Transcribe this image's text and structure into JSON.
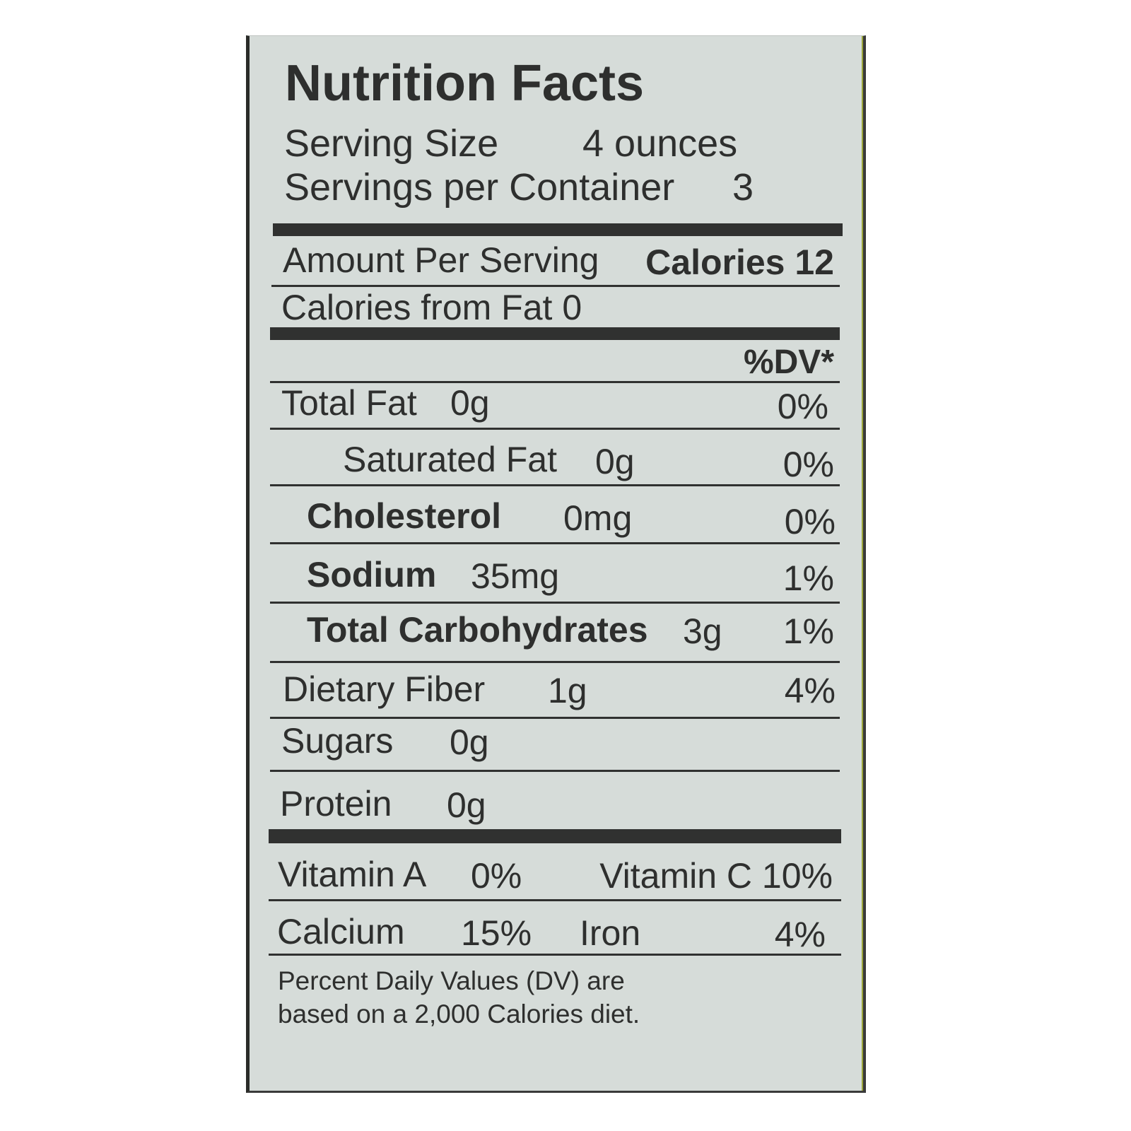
{
  "label": {
    "title": "Nutrition Facts",
    "serving_size_label": "Serving Size",
    "serving_size_value": "4 ounces",
    "servings_label": "Servings per Container",
    "servings_value": "3",
    "amount_per_serving": "Amount Per Serving",
    "calories": "Calories 12",
    "calories_from_fat": "Calories from Fat 0",
    "dv_header": "%DV*",
    "rows": [
      {
        "name": "Total Fat",
        "amount": "0g",
        "dv": "0%"
      },
      {
        "name": "Saturated Fat",
        "amount": "0g",
        "dv": "0%"
      },
      {
        "name": "Cholesterol",
        "amount": "0mg",
        "dv": "0%"
      },
      {
        "name": "Sodium",
        "amount": "35mg",
        "dv": "1%"
      },
      {
        "name": "Total Carbohydrates",
        "amount": "3g",
        "dv": "1%"
      },
      {
        "name": "Dietary Fiber",
        "amount": "1g",
        "dv": "4%"
      },
      {
        "name": "Sugars",
        "amount": "0g"
      },
      {
        "name": "Protein",
        "amount": "0g"
      }
    ],
    "vitamins": [
      {
        "name": "Vitamin A",
        "dv": "0%"
      },
      {
        "name": "Vitamin C 10%"
      },
      {
        "name": "Calcium",
        "dv": "15%"
      },
      {
        "name": "Iron",
        "dv": "4%"
      }
    ],
    "footnote_line1": "Percent Daily Values (DV) are",
    "footnote_line2": "based on a 2,000 Calories diet."
  },
  "colors": {
    "background": "#d6dcd9",
    "text": "#2e2f2e"
  }
}
